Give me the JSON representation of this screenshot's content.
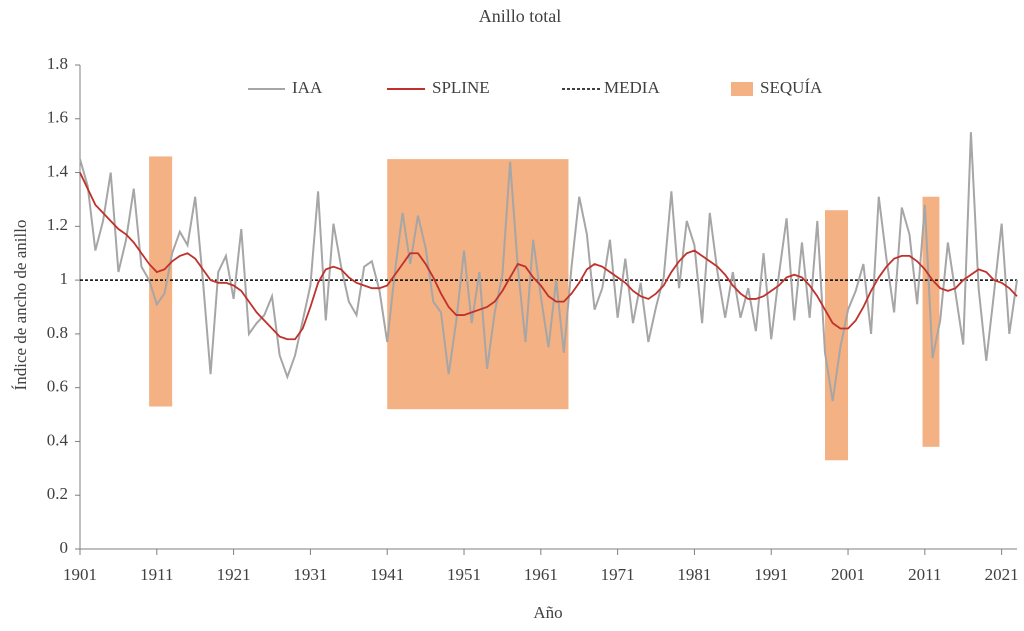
{
  "chart_data": {
    "type": "line",
    "title": "Anillo total",
    "x_label": "Año",
    "y_label": "Índice de ancho de anillo",
    "x": [
      1901,
      1902,
      1903,
      1904,
      1905,
      1906,
      1907,
      1908,
      1909,
      1910,
      1911,
      1912,
      1913,
      1914,
      1915,
      1916,
      1917,
      1918,
      1919,
      1920,
      1921,
      1922,
      1923,
      1924,
      1925,
      1926,
      1927,
      1928,
      1929,
      1930,
      1931,
      1932,
      1933,
      1934,
      1935,
      1936,
      1937,
      1938,
      1939,
      1940,
      1941,
      1942,
      1943,
      1944,
      1945,
      1946,
      1947,
      1948,
      1949,
      1950,
      1951,
      1952,
      1953,
      1954,
      1955,
      1956,
      1957,
      1958,
      1959,
      1960,
      1961,
      1962,
      1963,
      1964,
      1965,
      1966,
      1967,
      1968,
      1969,
      1970,
      1971,
      1972,
      1973,
      1974,
      1975,
      1976,
      1977,
      1978,
      1979,
      1980,
      1981,
      1982,
      1983,
      1984,
      1985,
      1986,
      1987,
      1988,
      1989,
      1990,
      1991,
      1992,
      1993,
      1994,
      1995,
      1996,
      1997,
      1998,
      1999,
      2000,
      2001,
      2002,
      2003,
      2004,
      2005,
      2006,
      2007,
      2008,
      2009,
      2010,
      2011,
      2012,
      2013,
      2014,
      2015,
      2016,
      2017,
      2018,
      2019,
      2020,
      2021,
      2022,
      2023
    ],
    "series": [
      {
        "name": "IAA",
        "color": "#a6a6a6",
        "values": [
          1.45,
          1.35,
          1.11,
          1.22,
          1.4,
          1.03,
          1.15,
          1.34,
          1.05,
          1.0,
          0.91,
          0.95,
          1.1,
          1.18,
          1.13,
          1.31,
          1.0,
          0.65,
          1.03,
          1.09,
          0.93,
          1.19,
          0.8,
          0.84,
          0.87,
          0.94,
          0.72,
          0.64,
          0.72,
          0.85,
          0.98,
          1.33,
          0.85,
          1.21,
          1.05,
          0.92,
          0.87,
          1.05,
          1.07,
          0.96,
          0.77,
          1.03,
          1.25,
          1.06,
          1.24,
          1.12,
          0.92,
          0.88,
          0.65,
          0.85,
          1.11,
          0.84,
          1.03,
          0.67,
          0.88,
          1.02,
          1.44,
          1.05,
          0.77,
          1.15,
          0.94,
          0.75,
          1.0,
          0.73,
          1.05,
          1.31,
          1.17,
          0.89,
          0.97,
          1.15,
          0.86,
          1.08,
          0.84,
          0.99,
          0.77,
          0.9,
          1.01,
          1.33,
          0.97,
          1.22,
          1.13,
          0.84,
          1.25,
          1.03,
          0.86,
          1.03,
          0.86,
          0.97,
          0.81,
          1.1,
          0.78,
          1.02,
          1.23,
          0.85,
          1.14,
          0.86,
          1.22,
          0.73,
          0.55,
          0.75,
          0.89,
          0.96,
          1.06,
          0.8,
          1.31,
          1.08,
          0.88,
          1.27,
          1.17,
          0.91,
          1.28,
          0.71,
          0.85,
          1.14,
          0.95,
          0.76,
          1.55,
          0.97,
          0.7,
          0.95,
          1.21,
          0.8,
          1.0
        ]
      },
      {
        "name": "SPLINE",
        "color": "#c0312b",
        "values": [
          1.4,
          1.34,
          1.28,
          1.25,
          1.22,
          1.19,
          1.17,
          1.14,
          1.1,
          1.06,
          1.03,
          1.04,
          1.07,
          1.09,
          1.1,
          1.08,
          1.04,
          1.0,
          0.99,
          0.99,
          0.98,
          0.96,
          0.92,
          0.88,
          0.85,
          0.82,
          0.79,
          0.78,
          0.78,
          0.82,
          0.9,
          0.99,
          1.04,
          1.05,
          1.04,
          1.01,
          0.99,
          0.98,
          0.97,
          0.97,
          0.98,
          1.02,
          1.06,
          1.1,
          1.1,
          1.06,
          1.01,
          0.95,
          0.9,
          0.87,
          0.87,
          0.88,
          0.89,
          0.9,
          0.92,
          0.96,
          1.01,
          1.06,
          1.05,
          1.01,
          0.98,
          0.94,
          0.92,
          0.92,
          0.95,
          0.99,
          1.04,
          1.06,
          1.05,
          1.03,
          1.01,
          0.99,
          0.96,
          0.94,
          0.93,
          0.95,
          0.98,
          1.03,
          1.07,
          1.1,
          1.11,
          1.09,
          1.07,
          1.05,
          1.02,
          0.98,
          0.95,
          0.93,
          0.93,
          0.94,
          0.96,
          0.98,
          1.01,
          1.02,
          1.01,
          0.98,
          0.94,
          0.89,
          0.84,
          0.82,
          0.82,
          0.85,
          0.9,
          0.96,
          1.01,
          1.05,
          1.08,
          1.09,
          1.09,
          1.07,
          1.04,
          1.0,
          0.97,
          0.96,
          0.97,
          1.0,
          1.02,
          1.04,
          1.03,
          1.0,
          0.99,
          0.97,
          0.94
        ]
      }
    ],
    "mean": {
      "name": "MEDIA",
      "color": "#000000",
      "value": 1
    },
    "droughts": {
      "name": "SEQUÍA",
      "color": "#f4b183",
      "ranges": [
        {
          "x": [
            1910,
            1913
          ],
          "y": [
            0.53,
            1.46
          ]
        },
        {
          "x": [
            1941,
            1964.6
          ],
          "y": [
            0.52,
            1.45
          ]
        },
        {
          "x": [
            1998,
            2001
          ],
          "y": [
            0.33,
            1.26
          ]
        },
        {
          "x": [
            2010.7,
            2012.9
          ],
          "y": [
            0.38,
            1.31
          ]
        }
      ]
    },
    "xlim": [
      1901,
      2023
    ],
    "xticks": [
      1901,
      1911,
      1921,
      1931,
      1941,
      1951,
      1961,
      1971,
      1981,
      1991,
      2001,
      2011,
      2021
    ],
    "ylim": [
      0,
      1.8
    ],
    "yticks": [
      0,
      0.2,
      0.4,
      0.6,
      0.8,
      1,
      1.2,
      1.4,
      1.6,
      1.8
    ],
    "grid": false
  }
}
